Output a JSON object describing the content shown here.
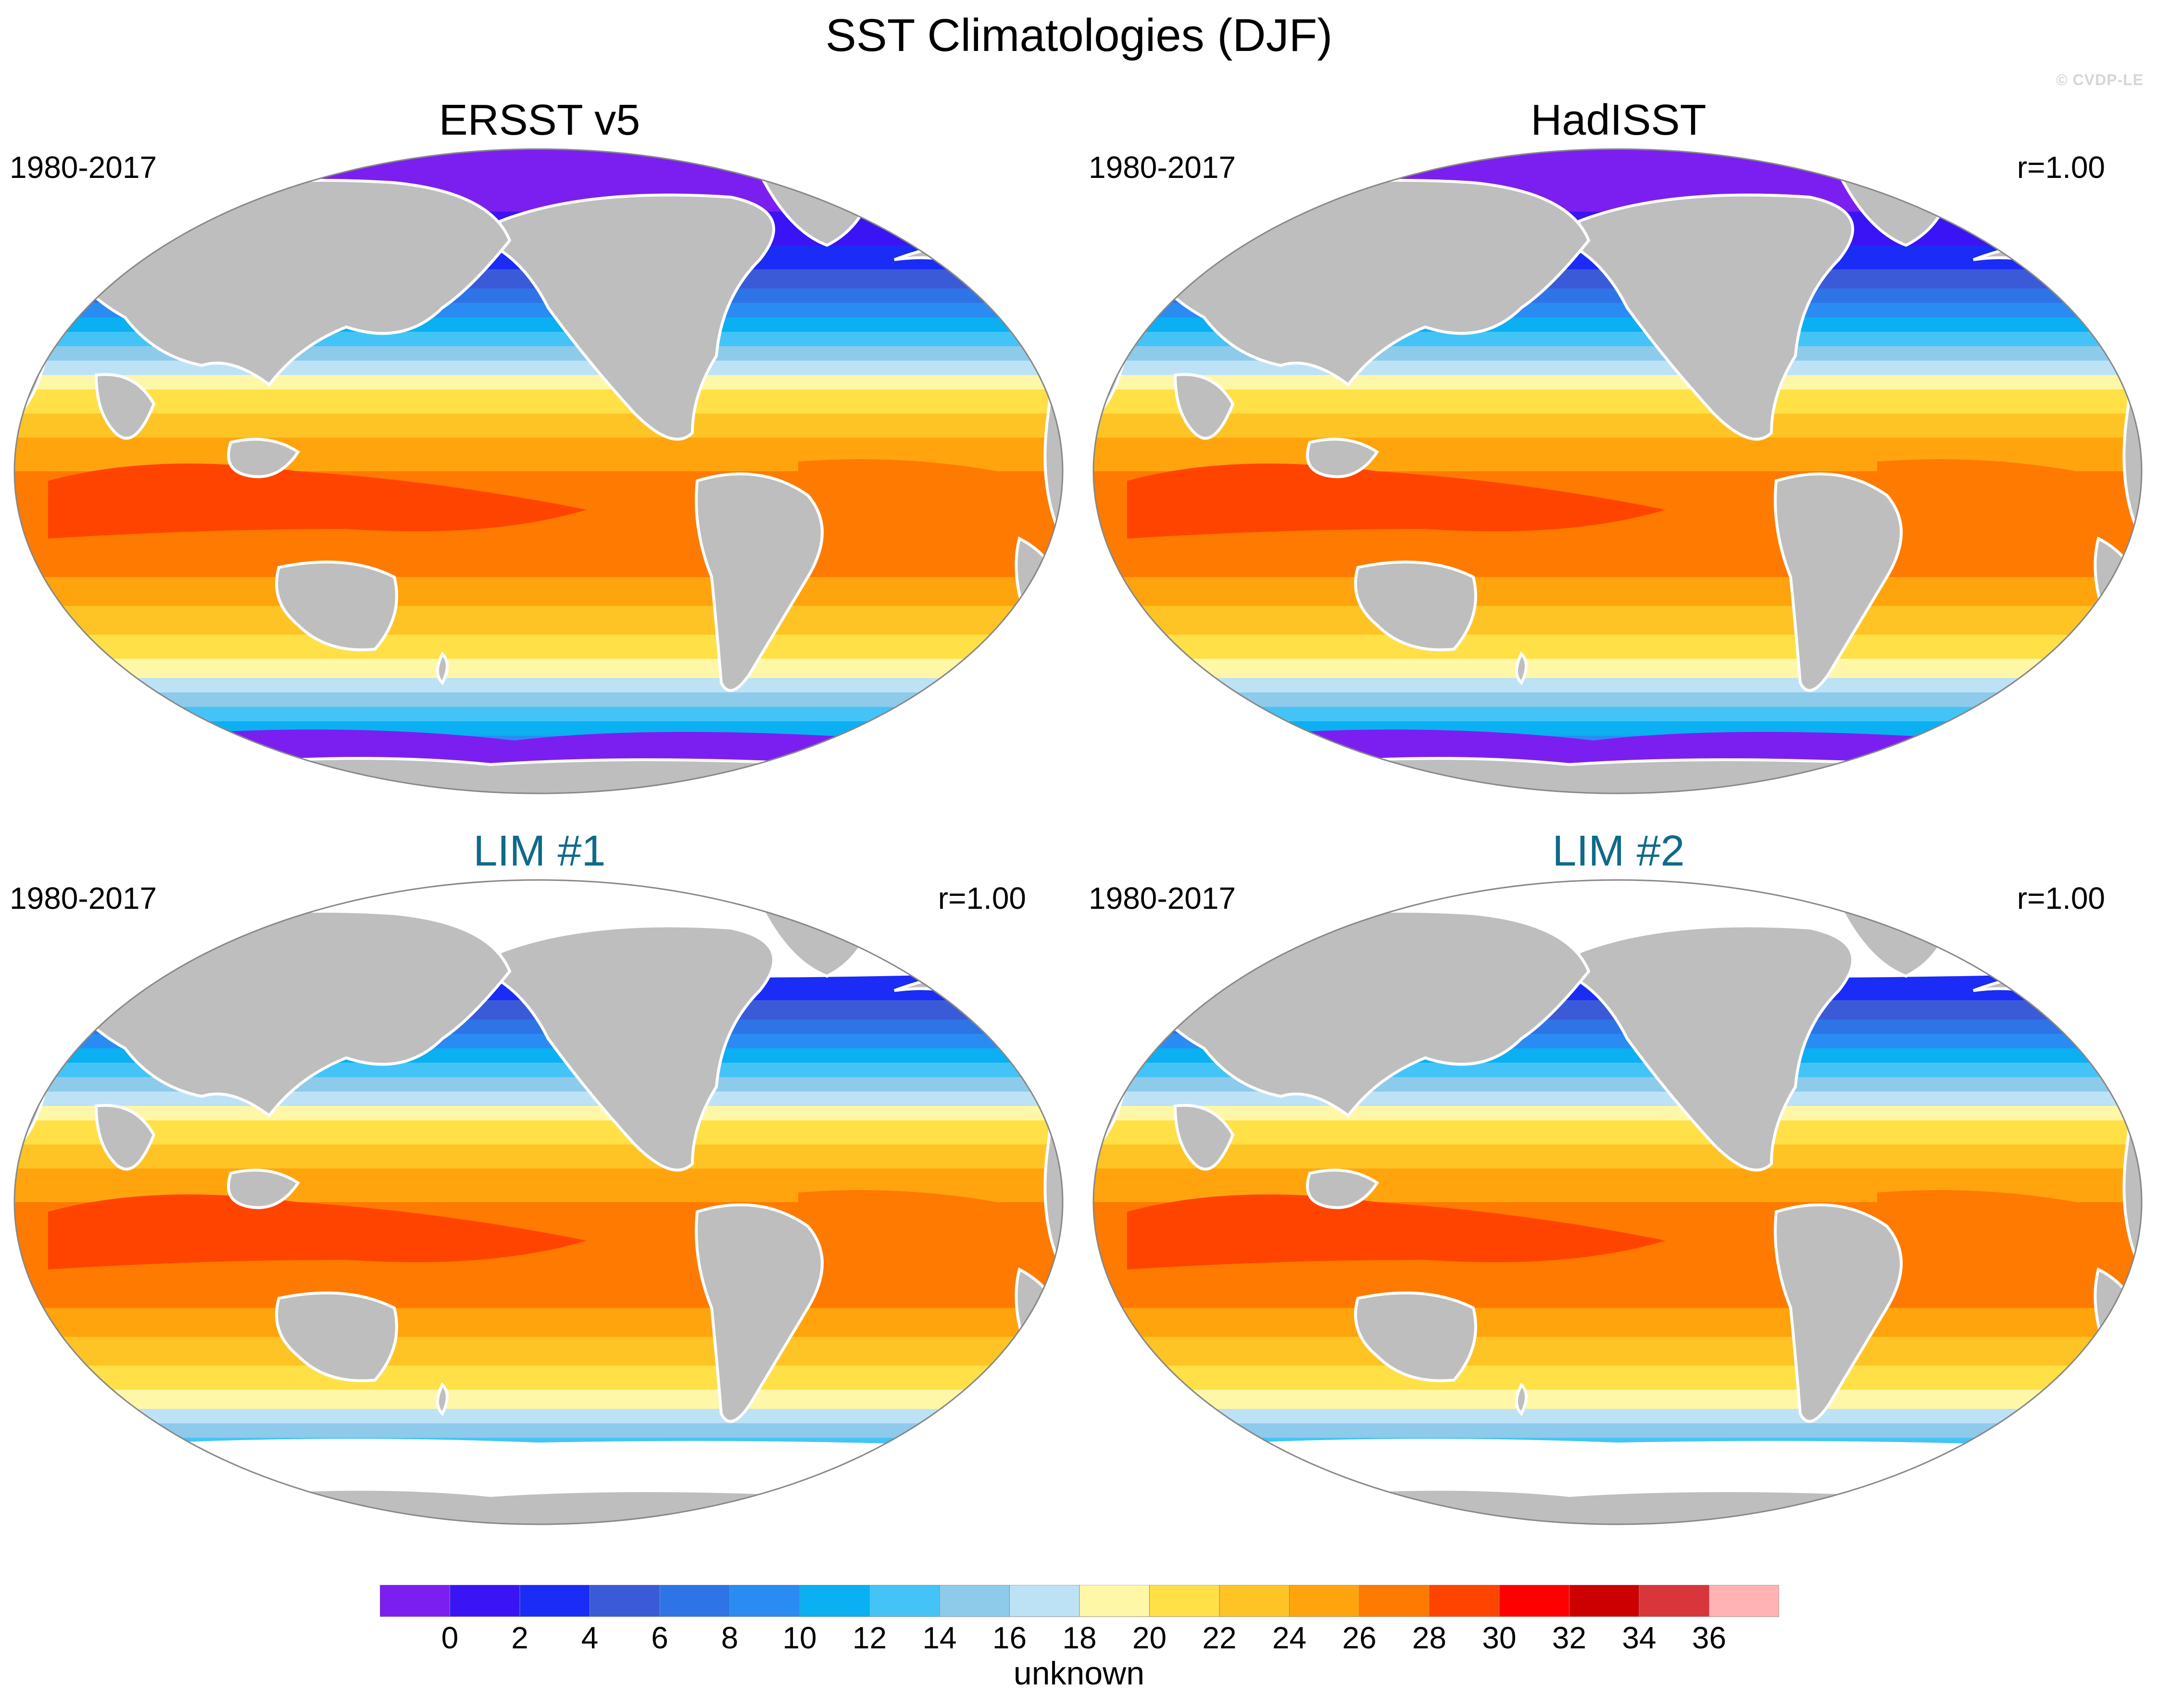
{
  "title": "SST Climatologies (DJF)",
  "credit": "© CVDP-LE",
  "panels": [
    {
      "id": "ersst",
      "title": "ERSST v5",
      "period": "1980-2017",
      "corr": "",
      "kind": "obs",
      "antarctic_ice": true
    },
    {
      "id": "hadisst",
      "title": "HadISST",
      "period": "1980-2017",
      "corr": "r=1.00",
      "kind": "obs",
      "antarctic_ice": true
    },
    {
      "id": "lim1",
      "title": "LIM #1",
      "period": "1980-2017",
      "corr": "r=1.00",
      "kind": "model",
      "antarctic_ice": false
    },
    {
      "id": "lim2",
      "title": "LIM #2",
      "period": "1980-2017",
      "corr": "r=1.00",
      "kind": "model",
      "antarctic_ice": false
    }
  ],
  "colorbar": {
    "unit": "unknown",
    "labels": [
      "0",
      "2",
      "4",
      "6",
      "8",
      "10",
      "12",
      "14",
      "16",
      "18",
      "20",
      "22",
      "24",
      "26",
      "28",
      "30",
      "32",
      "34",
      "36"
    ],
    "colors": [
      "#7b1ff0",
      "#3a14f5",
      "#1a2cf5",
      "#3b5ad8",
      "#2e74e6",
      "#2a8cf2",
      "#0ab0f2",
      "#44c4f6",
      "#8ecaea",
      "#bde2f6",
      "#fff7a8",
      "#ffe047",
      "#fec426",
      "#ffa40d",
      "#ff7a00",
      "#ff4400",
      "#ff0000",
      "#cc0000",
      "#d9363c",
      "#ffb3b5"
    ]
  },
  "map_colors": {
    "land": "#bebebe",
    "missing": "#ffffff",
    "outline": "#888888"
  }
}
